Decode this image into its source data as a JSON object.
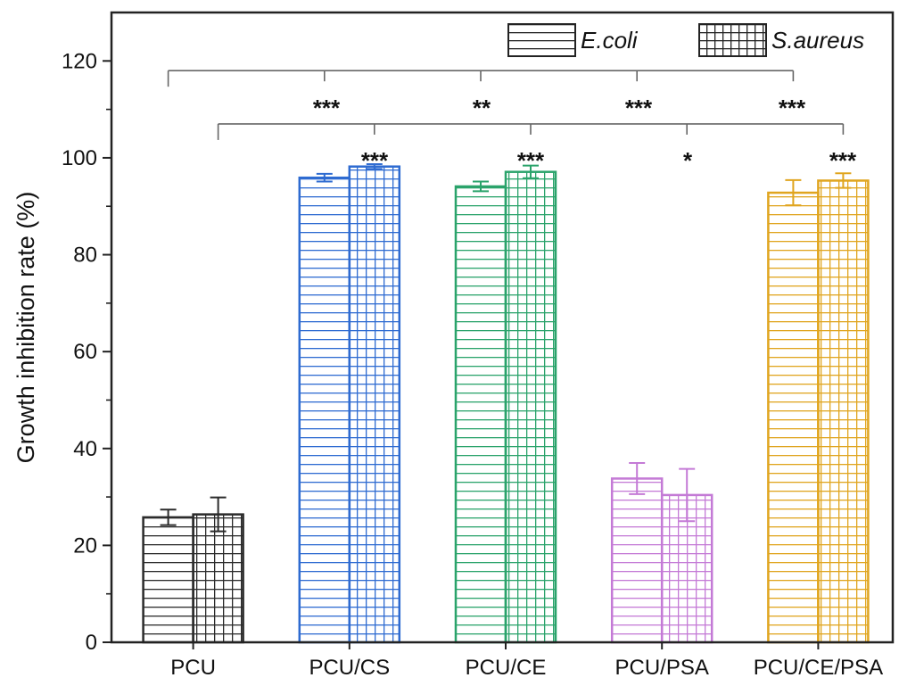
{
  "chart_data": {
    "type": "bar",
    "title": "",
    "xlabel": "",
    "ylabel": "Growth inhibition rate (%)",
    "ylim": [
      0,
      130
    ],
    "yticks": [
      0,
      20,
      40,
      60,
      80,
      100,
      120
    ],
    "grid": false,
    "legend_position": "top-right",
    "categories": [
      "PCU",
      "PCU/CS",
      "PCU/CE",
      "PCU/PSA",
      "PCU/CE/PSA"
    ],
    "category_colors": [
      "#2b2b2b",
      "#2e6bd1",
      "#2aa36b",
      "#c47ad6",
      "#e0a51f"
    ],
    "series": [
      {
        "name": "E.coli",
        "pattern": "horizontal-lines",
        "values": [
          25.8,
          95.9,
          94.1,
          33.8,
          92.8
        ],
        "errors": [
          1.6,
          0.8,
          1.0,
          3.2,
          2.6
        ]
      },
      {
        "name": "S.aureus",
        "pattern": "grid",
        "values": [
          26.4,
          98.2,
          97.1,
          30.4,
          95.3
        ],
        "errors": [
          3.5,
          0.5,
          1.3,
          5.4,
          1.5
        ]
      }
    ],
    "significance": [
      {
        "group": 1,
        "text": "***"
      },
      {
        "group": 2,
        "text": "***"
      },
      {
        "group": 3,
        "text": "**"
      },
      {
        "group": 4,
        "text": "***"
      },
      {
        "group": 5,
        "text": "***"
      },
      {
        "group": 6,
        "text": "***"
      },
      {
        "group": 7,
        "text": "*"
      },
      {
        "group": 8,
        "text": "***"
      }
    ]
  }
}
